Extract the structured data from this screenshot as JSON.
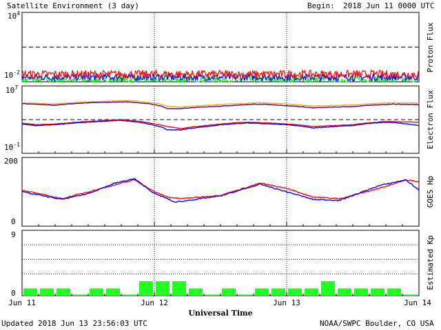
{
  "header": {
    "title": "Satellite Environment (3 day)",
    "begin_label": "Begin:",
    "begin_value": "2018 Jun 11 0000 UTC"
  },
  "footer": {
    "updated": "Updated 2018 Jun 13 23:56:03 UTC",
    "credit": "NOAA/SWPC Boulder, CO USA"
  },
  "xaxis": {
    "label": "Universal Time",
    "ticks": [
      "Jun 11",
      "Jun 12",
      "Jun 13",
      "Jun 14"
    ]
  },
  "colors": {
    "red": "#ff0000",
    "blue": "#0000ff",
    "green": "#00ff00",
    "orange": "#ffa500",
    "purple": "#4400aa",
    "kp_green": "#22ff22"
  },
  "chart_data": [
    {
      "type": "line",
      "panel": "proton",
      "ylabel": "Proton Flux",
      "yscale": "log",
      "ylim": [
        0.01,
        10000
      ],
      "yticks": [
        {
          "base": "10",
          "exp": "4"
        },
        {
          "base": "10",
          "exp": "-2"
        }
      ],
      "threshold": 10,
      "x_days": [
        0,
        3
      ],
      "series": [
        {
          "color": "red",
          "level": 0.045,
          "jitter": 0.35
        },
        {
          "color": "blue",
          "level": 0.025,
          "jitter": 0.3
        },
        {
          "color": "green",
          "level": 0.015,
          "jitter": 0.35
        }
      ]
    },
    {
      "type": "line",
      "panel": "electron",
      "ylabel": "Electron Flux",
      "yscale": "log",
      "ylim": [
        0.1,
        10000000
      ],
      "yticks": [
        {
          "base": "10",
          "exp": "7"
        },
        {
          "base": "10",
          "exp": "-1"
        }
      ],
      "threshold": 1000,
      "series": [
        {
          "color": "orange",
          "x": [
            0,
            0.25,
            0.5,
            0.8,
            1.0,
            1.1,
            1.2,
            1.5,
            1.8,
            2.0,
            2.2,
            2.5,
            2.8,
            3.0
          ],
          "values": [
            100000,
            70000,
            130000,
            180000,
            90000,
            40000,
            30000,
            60000,
            100000,
            70000,
            40000,
            55000,
            100000,
            90000
          ]
        },
        {
          "color": "purple",
          "x": [
            0,
            0.25,
            0.5,
            0.8,
            1.0,
            1.1,
            1.2,
            1.5,
            1.8,
            2.0,
            2.2,
            2.5,
            2.8,
            3.0
          ],
          "values": [
            80000,
            50000,
            100000,
            130000,
            60000,
            20000,
            20000,
            40000,
            70000,
            45000,
            25000,
            35000,
            70000,
            60000
          ]
        },
        {
          "color": "red",
          "x": [
            0,
            0.1,
            0.25,
            0.5,
            0.75,
            1.0,
            1.1,
            1.2,
            1.4,
            1.7,
            2.0,
            2.2,
            2.5,
            2.75,
            3.0
          ],
          "values": [
            400,
            250,
            300,
            600,
            1000,
            300,
            150,
            80,
            200,
            500,
            300,
            150,
            250,
            600,
            500
          ]
        },
        {
          "color": "blue",
          "x": [
            0,
            0.1,
            0.25,
            0.5,
            0.75,
            1.0,
            1.1,
            1.2,
            1.4,
            1.7,
            2.0,
            2.2,
            2.5,
            2.75,
            3.0
          ],
          "values": [
            300,
            200,
            250,
            500,
            800,
            200,
            60,
            60,
            150,
            400,
            250,
            100,
            200,
            500,
            200
          ]
        }
      ]
    },
    {
      "type": "line",
      "panel": "goes_hp",
      "ylabel": "GOES Hp",
      "ylim": [
        0,
        200
      ],
      "yticks": [
        "200",
        "0"
      ],
      "series": [
        {
          "color": "red",
          "x": [
            0,
            0.3,
            0.5,
            0.7,
            0.85,
            1.0,
            1.1,
            1.2,
            1.5,
            1.8,
            2.0,
            2.2,
            2.4,
            2.7,
            2.9,
            3.0
          ],
          "values": [
            105,
            80,
            100,
            120,
            135,
            100,
            85,
            80,
            90,
            125,
            110,
            85,
            80,
            110,
            135,
            130
          ]
        },
        {
          "color": "blue",
          "x": [
            0,
            0.3,
            0.5,
            0.7,
            0.85,
            1.0,
            1.1,
            1.15,
            1.2,
            1.5,
            1.8,
            2.0,
            2.2,
            2.4,
            2.7,
            2.9,
            3.0
          ],
          "values": [
            100,
            78,
            95,
            125,
            138,
            95,
            80,
            70,
            72,
            88,
            122,
            100,
            78,
            75,
            118,
            135,
            105
          ]
        }
      ]
    },
    {
      "type": "bar",
      "panel": "kp",
      "ylabel": "Estimated Kp",
      "ylim": [
        0,
        9
      ],
      "yticks": [
        "9",
        "0"
      ],
      "values": [
        1,
        1,
        1,
        0,
        1,
        1,
        0,
        2,
        2,
        2,
        1,
        0,
        1,
        0,
        1,
        1,
        1,
        1,
        2,
        1,
        1,
        1,
        1,
        0
      ]
    }
  ]
}
